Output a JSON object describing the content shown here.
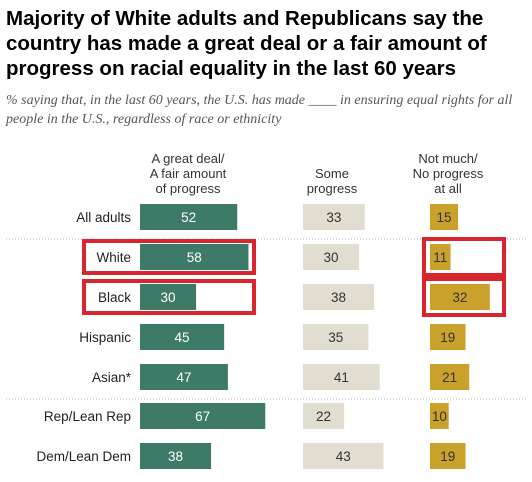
{
  "title": "Majority of White adults and Republicans say the country has made a great deal or a fair amount of progress on racial equality in the last 60 years",
  "subtitle": "% saying that, in the last 60 years, the U.S. has made ____ in ensuring equal rights for all people in the U.S., regardless of race or ethnicity",
  "colors": {
    "great_deal": "#3d7a67",
    "some": "#e1ddd0",
    "not_much": "#c9a12b",
    "highlight": "#d9262e",
    "divider": "#b8b8b8"
  },
  "chart_data": {
    "type": "bar",
    "categories": [
      "All adults",
      "White",
      "Black",
      "Hispanic",
      "Asian*",
      "Rep/Lean Rep",
      "Dem/Lean Dem"
    ],
    "series": [
      {
        "name": "A great deal/\nA fair amount\nof progress",
        "values": [
          52,
          58,
          30,
          45,
          47,
          67,
          38
        ]
      },
      {
        "name": "Some\nprogress",
        "values": [
          33,
          30,
          38,
          35,
          41,
          22,
          43
        ]
      },
      {
        "name": "Not much/\nNo progress\nat all",
        "values": [
          15,
          11,
          32,
          19,
          21,
          10,
          19
        ]
      }
    ],
    "highlighted": {
      "rows": [
        "White",
        "Black"
      ],
      "series": [
        "A great deal/\nA fair amount\nof progress",
        "Not much/\nNo progress\nat all"
      ]
    }
  }
}
